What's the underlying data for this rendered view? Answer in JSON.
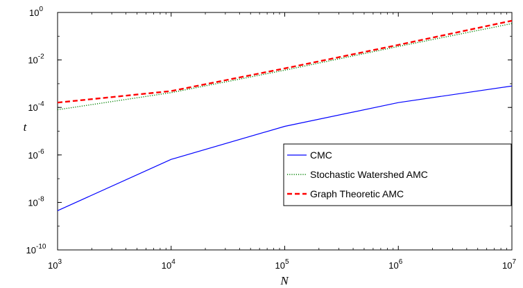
{
  "chart_data": {
    "type": "line",
    "title": "",
    "xlabel": "N",
    "ylabel": "t",
    "xscale": "log",
    "yscale": "log",
    "xlim": [
      1000,
      10000000
    ],
    "ylim": [
      1e-10,
      1
    ],
    "x_ticks": [
      {
        "value": 1000,
        "base": "10",
        "exp": "3"
      },
      {
        "value": 10000,
        "base": "10",
        "exp": "4"
      },
      {
        "value": 100000,
        "base": "10",
        "exp": "5"
      },
      {
        "value": 1000000,
        "base": "10",
        "exp": "6"
      },
      {
        "value": 10000000,
        "base": "10",
        "exp": "7"
      }
    ],
    "y_ticks": [
      {
        "value": 1e-10,
        "base": "10",
        "exp": "-10"
      },
      {
        "value": 1e-08,
        "base": "10",
        "exp": "-8"
      },
      {
        "value": 1e-06,
        "base": "10",
        "exp": "-6"
      },
      {
        "value": 0.0001,
        "base": "10",
        "exp": "-4"
      },
      {
        "value": 0.01,
        "base": "10",
        "exp": "-2"
      },
      {
        "value": 1,
        "base": "10",
        "exp": "0"
      }
    ],
    "grid": false,
    "legend_position": "lower-right",
    "x": [
      1000,
      10000,
      100000,
      1000000,
      10000000
    ],
    "series": [
      {
        "name": "CMC",
        "color": "#0000ff",
        "style": "solid",
        "values": [
          4.5e-09,
          6.5e-07,
          1.6e-05,
          0.00016,
          0.0008
        ]
      },
      {
        "name": "Stochastic Watershed AMC",
        "color": "#008000",
        "style": "dotted",
        "values": [
          8e-05,
          0.00042,
          0.0037,
          0.037,
          0.34
        ]
      },
      {
        "name": "Graph Theoretic AMC",
        "color": "#ff0000",
        "style": "dashed",
        "values": [
          0.00016,
          0.00049,
          0.0044,
          0.043,
          0.45
        ]
      }
    ]
  }
}
